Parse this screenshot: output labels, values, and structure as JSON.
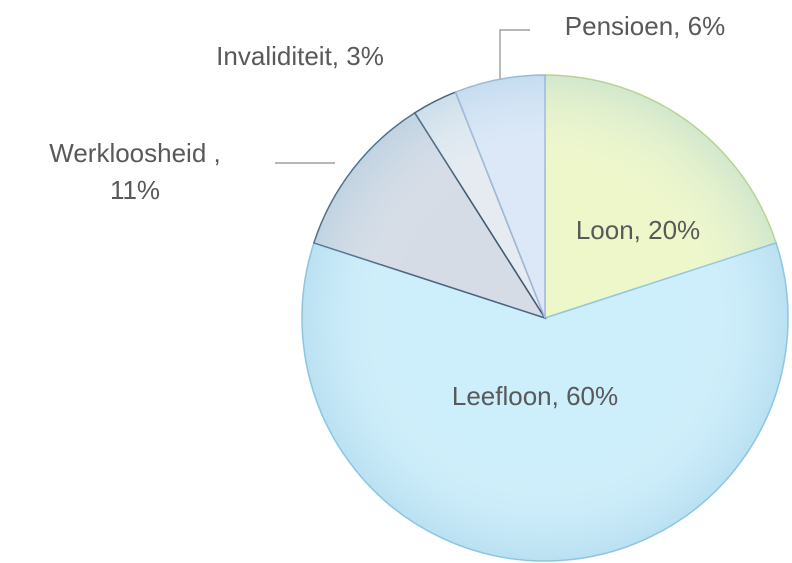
{
  "chart_data": {
    "type": "pie",
    "values": [
      20,
      60,
      11,
      3,
      6
    ],
    "value_labels": [
      "Loon, 20%",
      "Leefloon, 60%",
      [
        "Werkloosheid ,",
        "11%"
      ],
      "Invaliditeit, 3%",
      "Pensioen, 6%"
    ],
    "colors": [
      "#eef7c9",
      "#cdeefb",
      "#d6dce6",
      "#e5ebf1",
      "#dce8f8"
    ],
    "start_angle": 0,
    "direction": "clockwise"
  }
}
